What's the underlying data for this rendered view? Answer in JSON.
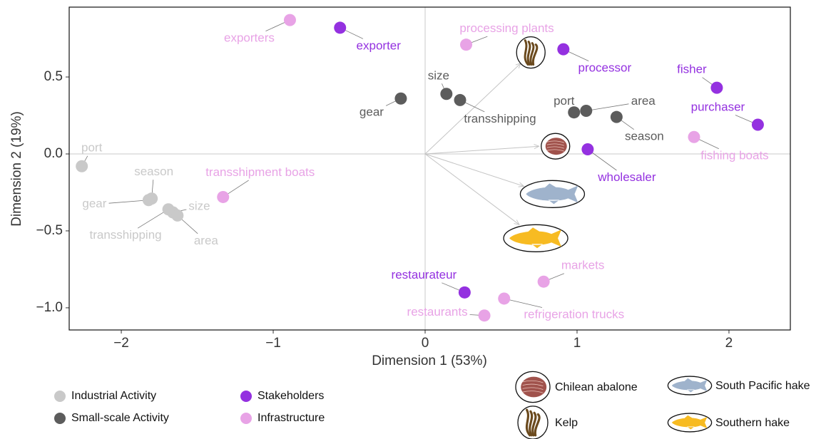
{
  "chart_data": {
    "type": "scatter",
    "x_label": "Dimension 1 (53%)",
    "y_label": "Dimension 2 (19%)",
    "xlim": [
      -2.343,
      2.404
    ],
    "ylim": [
      -1.144,
      0.954
    ],
    "xticks": [
      {
        "value": -2,
        "label": "−2"
      },
      {
        "value": -1,
        "label": "−1"
      },
      0,
      1,
      2
    ],
    "yticks": [
      0.5,
      {
        "value": 0,
        "label": "0.0"
      },
      {
        "value": -0.5,
        "label": "−0.5"
      },
      {
        "value": -1,
        "label": "−1.0"
      }
    ],
    "series": [
      {
        "name": "Industrial Activity",
        "color": "#c9c9c9",
        "labels": [
          "port",
          "season",
          "gear",
          "transshipping",
          "size",
          "area"
        ],
        "x": [
          -2.26,
          -1.8,
          -1.82,
          -1.69,
          -1.66,
          -1.63
        ],
        "values": [
          -0.08,
          -0.29,
          -0.3,
          -0.36,
          -0.38,
          -0.4
        ]
      },
      {
        "name": "Small-scale Activity",
        "color": "#5c5c5c",
        "labels": [
          "gear",
          "size",
          "transshipping",
          "port",
          "area",
          "season"
        ],
        "x": [
          -0.16,
          0.14,
          0.23,
          0.98,
          1.06,
          1.26
        ],
        "values": [
          0.36,
          0.39,
          0.35,
          0.27,
          0.28,
          0.24
        ]
      },
      {
        "name": "Stakeholders",
        "color": "#9431e0",
        "labels": [
          "exporter",
          "processor",
          "fisher",
          "purchaser",
          "wholesaler",
          "restaurateur"
        ],
        "x": [
          -0.56,
          0.91,
          1.92,
          2.19,
          1.07,
          0.26
        ],
        "values": [
          0.82,
          0.68,
          0.43,
          0.19,
          0.03,
          -0.9
        ]
      },
      {
        "name": "Infrastructure",
        "color": "#e8a3e6",
        "labels": [
          "exporters",
          "processing plants",
          "fishing boats",
          "transshipment boats",
          "markets",
          "refrigeration trucks",
          "restaurants"
        ],
        "x": [
          -0.89,
          0.27,
          1.77,
          -1.33,
          0.78,
          0.52,
          0.39
        ],
        "values": [
          0.87,
          0.71,
          0.11,
          -0.28,
          -0.83,
          -0.94,
          -1.05
        ]
      }
    ],
    "species": [
      {
        "name": "Chilean abalone",
        "color": "#a0524c",
        "x": 0.75,
        "y": 0.05
      },
      {
        "name": "Kelp",
        "color": "#6b4a1e",
        "x": 0.63,
        "y": 0.59
      },
      {
        "name": "South Pacific hake",
        "color": "#9fb3cc",
        "x": 0.65,
        "y": -0.21
      },
      {
        "name": "Southern hake",
        "color": "#f7bb22",
        "x": 0.62,
        "y": -0.46
      }
    ]
  }
}
